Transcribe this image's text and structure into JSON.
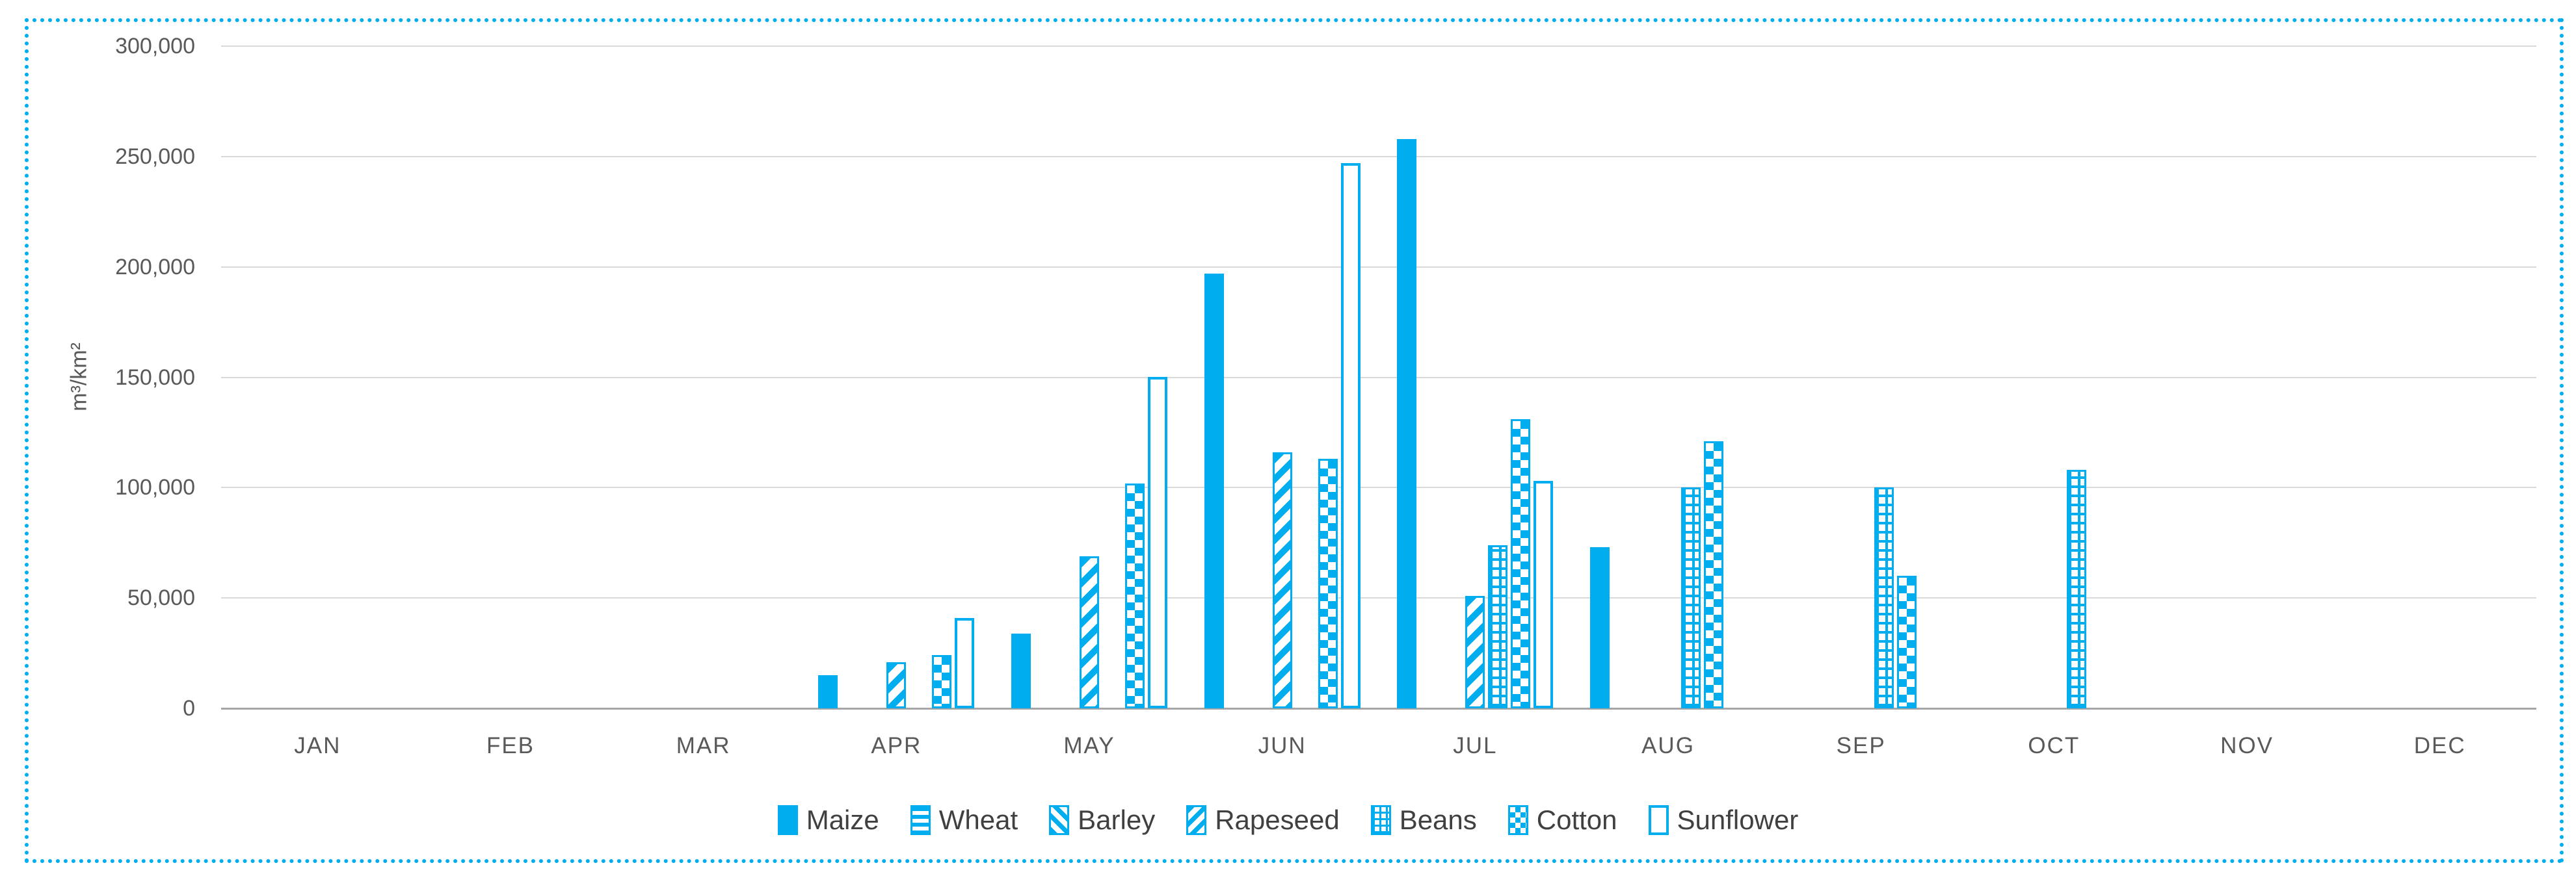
{
  "chart_data": {
    "type": "bar",
    "title": "",
    "ylabel": "m³/km²",
    "xlabel": "",
    "ylim": [
      0,
      300000
    ],
    "y_ticks": [
      "300,000",
      "250,000",
      "200,000",
      "150,000",
      "100,000",
      "50,000",
      "0"
    ],
    "y_tick_values": [
      300000,
      250000,
      200000,
      150000,
      100000,
      50000,
      0
    ],
    "grid": true,
    "legend_position": "bottom",
    "categories": [
      "JAN",
      "FEB",
      "MAR",
      "APR",
      "MAY",
      "JUN",
      "JUL",
      "AUG",
      "SEP",
      "OCT",
      "NOV",
      "DEC"
    ],
    "series": [
      {
        "name": "Maize",
        "pattern": "solid",
        "values": [
          0,
          0,
          0,
          15000,
          34000,
          197000,
          258000,
          73000,
          0,
          0,
          0,
          0
        ]
      },
      {
        "name": "Wheat",
        "pattern": "horizontal-stripes",
        "values": [
          0,
          0,
          0,
          0,
          0,
          0,
          0,
          0,
          0,
          0,
          0,
          0
        ]
      },
      {
        "name": "Barley",
        "pattern": "diagonal-backslash",
        "values": [
          0,
          0,
          0,
          0,
          0,
          0,
          0,
          0,
          0,
          0,
          0,
          0
        ]
      },
      {
        "name": "Rapeseed",
        "pattern": "diagonal-slash",
        "values": [
          0,
          0,
          0,
          21000,
          69000,
          116000,
          51000,
          0,
          0,
          0,
          0,
          0
        ]
      },
      {
        "name": "Beans",
        "pattern": "grid",
        "values": [
          0,
          0,
          0,
          0,
          0,
          0,
          74000,
          100000,
          100000,
          108000,
          0,
          0
        ]
      },
      {
        "name": "Cotton",
        "pattern": "checkerboard",
        "values": [
          0,
          0,
          0,
          24000,
          102000,
          113000,
          131000,
          121000,
          60000,
          0,
          0,
          0
        ]
      },
      {
        "name": "Sunflower",
        "pattern": "outline",
        "values": [
          0,
          0,
          0,
          41000,
          150000,
          247000,
          103000,
          0,
          0,
          0,
          0,
          0
        ]
      }
    ],
    "colors": {
      "bar_blue": "#00AEEF",
      "grid_line": "#D9D9D9",
      "axis_line": "#A6A6A6",
      "text": "#595959",
      "frame_border": "#00AEEF"
    }
  }
}
